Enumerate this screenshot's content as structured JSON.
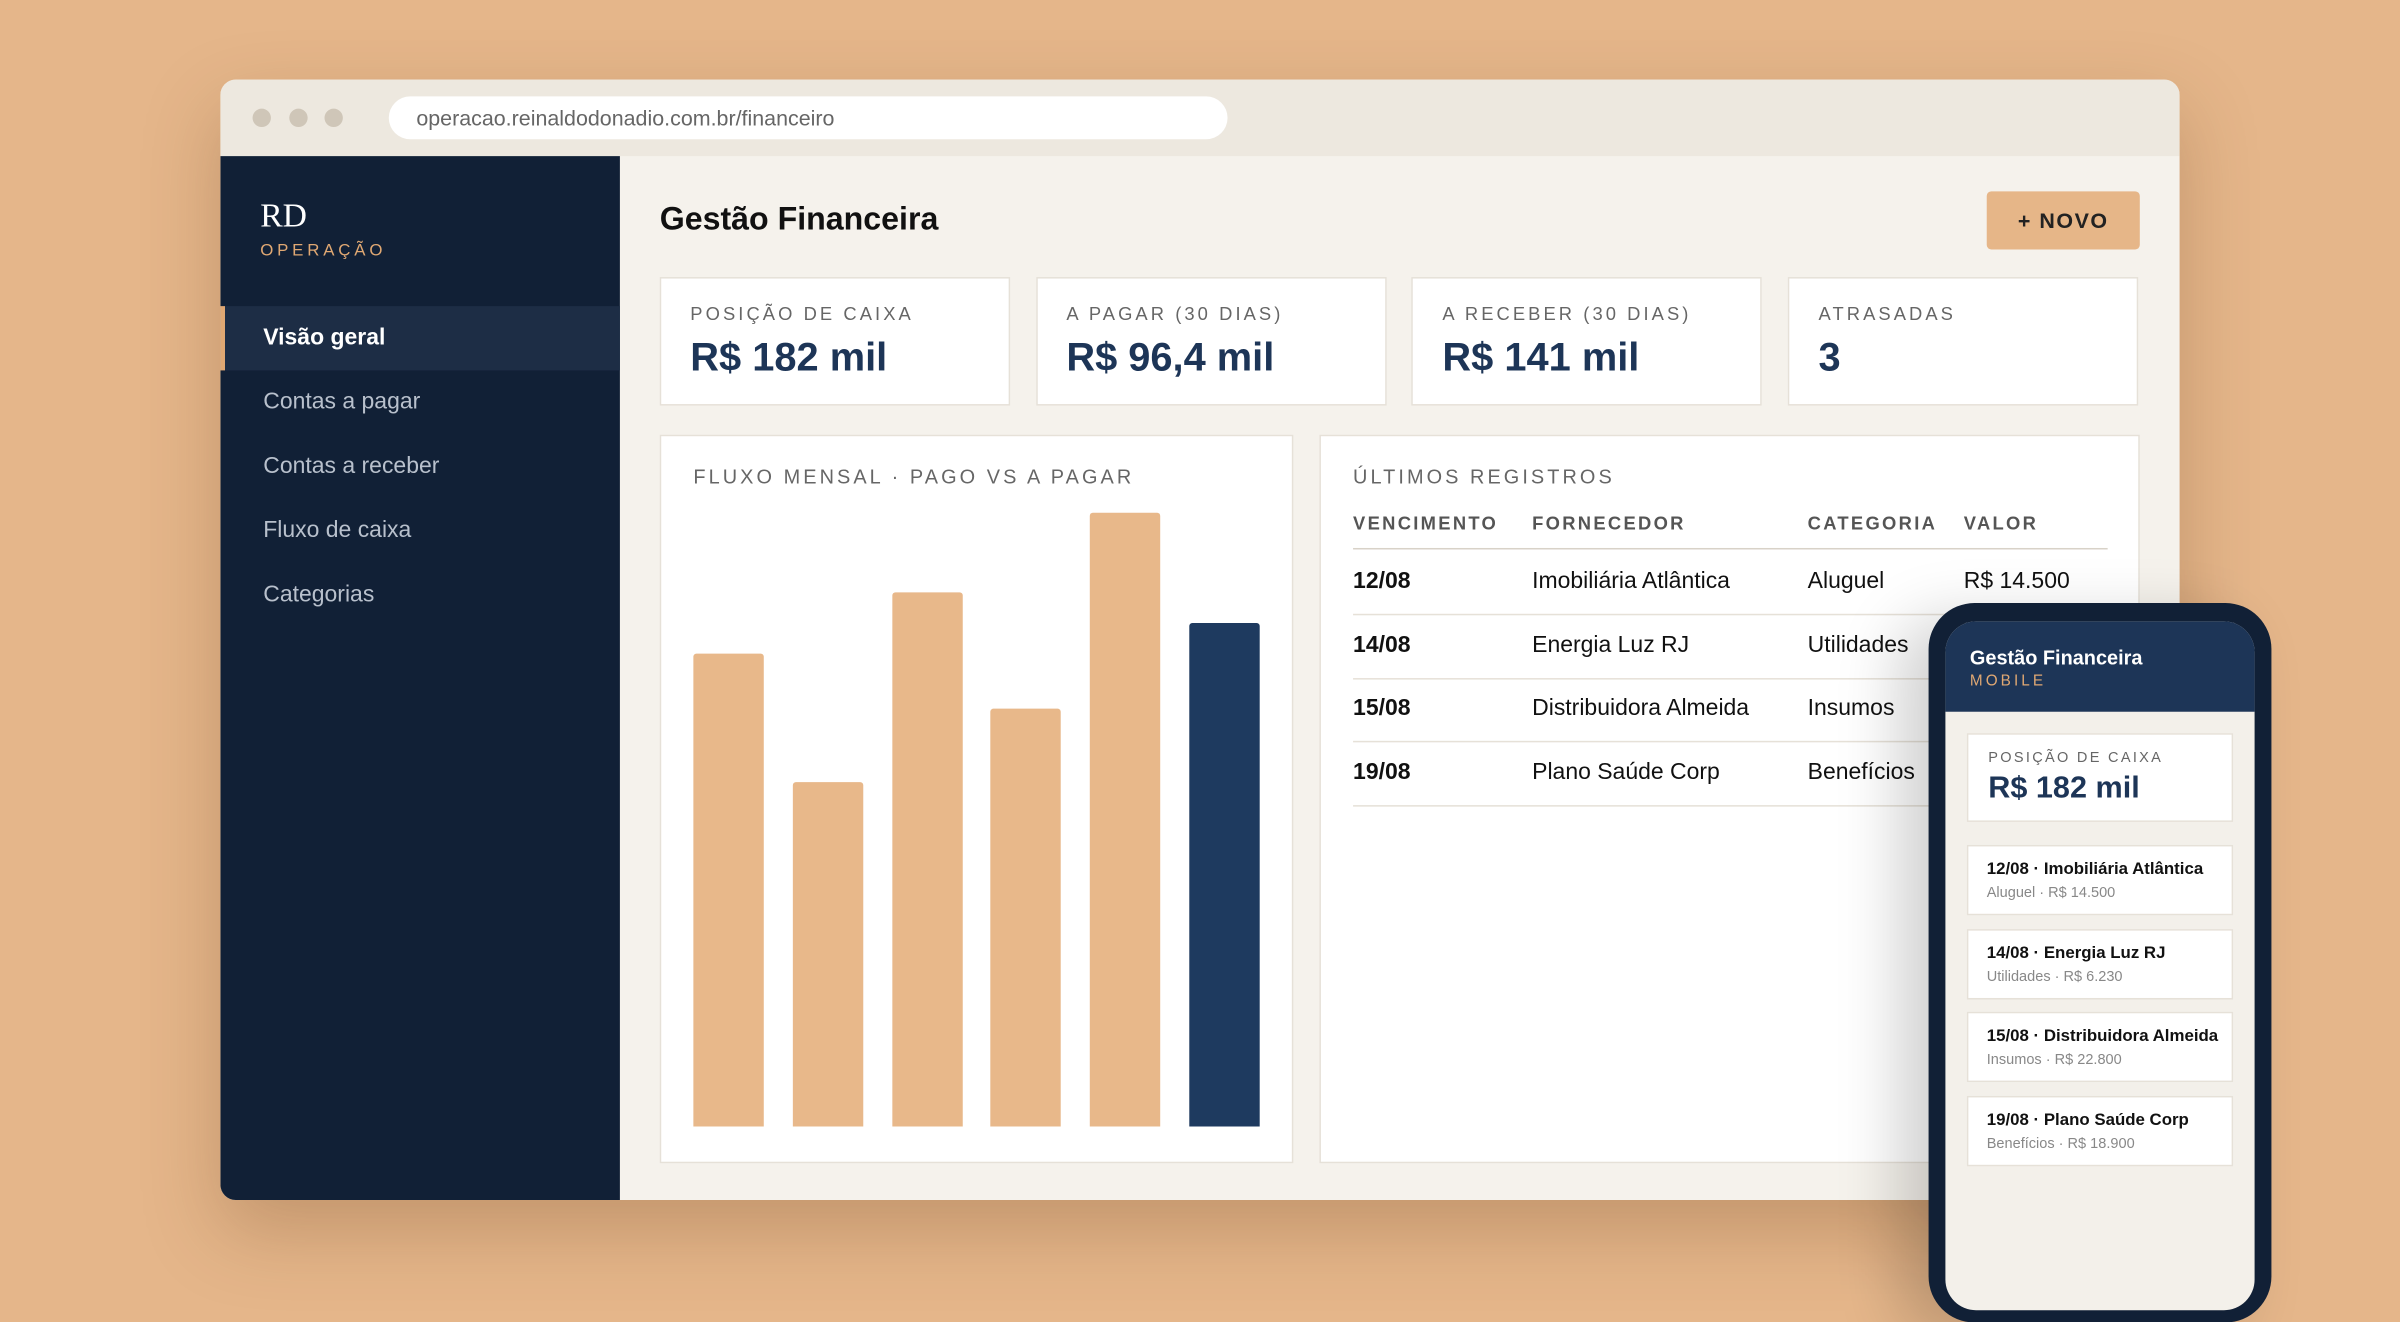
{
  "browser": {
    "url": "operacao.reinaldodonadio.com.br/financeiro"
  },
  "sidebar": {
    "logo": "RD",
    "subtitle": "OPERAÇÃO",
    "nav": [
      "Visão geral",
      "Contas a pagar",
      "Contas a receber",
      "Fluxo de caixa",
      "Categorias"
    ]
  },
  "header": {
    "title": "Gestão Financeira",
    "button": "+ NOVO"
  },
  "cards": [
    {
      "label": "POSIÇÃO DE CAIXA",
      "value": "R$ 182 mil"
    },
    {
      "label": "A PAGAR (30 DIAS)",
      "value": "R$ 96,4 mil"
    },
    {
      "label": "A RECEBER (30 DIAS)",
      "value": "R$ 141 mil"
    },
    {
      "label": "ATRASADAS",
      "value": "3"
    }
  ],
  "chart_data": {
    "type": "bar",
    "title": "FLUXO MENSAL · PAGO VS A PAGAR",
    "values": [
      77,
      56,
      87,
      68,
      100,
      82
    ],
    "colors": [
      "#e8b88a",
      "#e8b88a",
      "#e8b88a",
      "#e8b88a",
      "#e8b88a",
      "#1e3a5f"
    ]
  },
  "table": {
    "title": "ÚLTIMOS REGISTROS",
    "columns": [
      "VENCIMENTO",
      "FORNECEDOR",
      "CATEGORIA",
      "VALOR"
    ],
    "rows": [
      [
        "12/08",
        "Imobiliária Atlântica",
        "Aluguel",
        "R$ 14.500"
      ],
      [
        "14/08",
        "Energia Luz RJ",
        "Utilidades"
      ],
      [
        "15/08",
        "Distribuidora Almeida",
        "Insumos"
      ],
      [
        "19/08",
        "Plano Saúde Corp",
        "Benefícios"
      ]
    ]
  },
  "mobile": {
    "title": "Gestão Financeira",
    "subtitle": "MOBILE",
    "card": {
      "label": "POSIÇÃO DE CAIXA",
      "value": "R$ 182 mil"
    },
    "items": [
      {
        "title": "12/08 · Imobiliária Atlântica",
        "subtitle": "Aluguel · R$ 14.500"
      },
      {
        "title": "14/08 · Energia Luz RJ",
        "subtitle": "Utilidades · R$ 6.230"
      },
      {
        "title": "15/08 · Distribuidora Almeida",
        "subtitle": "Insumos · R$ 22.800"
      },
      {
        "title": "19/08 · Plano Saúde Corp",
        "subtitle": "Benefícios · R$ 18.900"
      }
    ]
  }
}
